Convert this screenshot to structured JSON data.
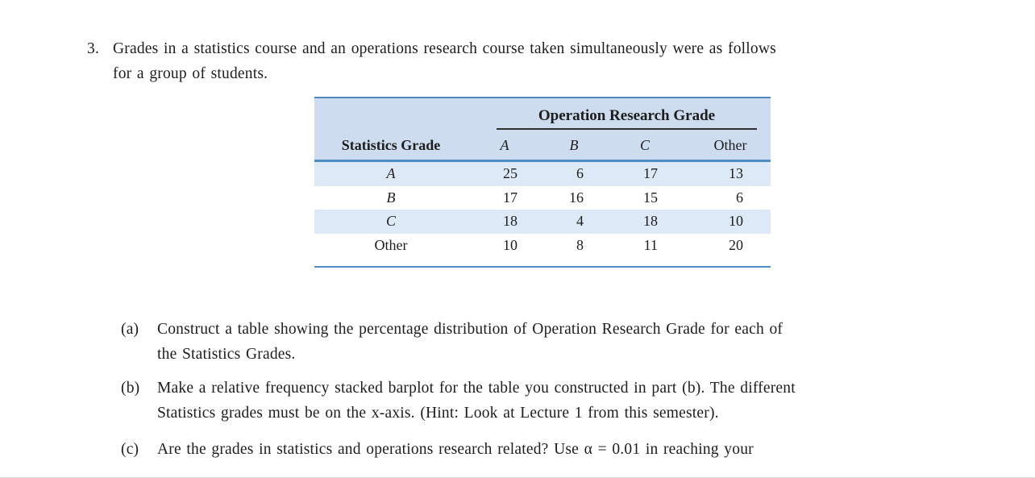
{
  "page": {
    "background": "#ffffff"
  },
  "problem": {
    "number": "3.",
    "lines": [
      "Grades in a statistics course and an operations research course taken simultaneously were as follows",
      "for a group of students."
    ]
  },
  "table": {
    "span_header": "Operation Research Grade",
    "row_header": "Statistics Grade",
    "columns": [
      "A",
      "B",
      "C",
      "Other"
    ],
    "rows": [
      {
        "label": "A",
        "values": [
          "25",
          "6",
          "17",
          "13"
        ]
      },
      {
        "label": "B",
        "values": [
          "17",
          "16",
          "15",
          "6"
        ]
      },
      {
        "label": "C",
        "values": [
          "18",
          "4",
          "18",
          "10"
        ]
      },
      {
        "label": "Other",
        "values": [
          "10",
          "8",
          "11",
          "20"
        ]
      }
    ],
    "colors": {
      "header_bg": "#cddcef",
      "stripe_bg": "#dde9f6",
      "rule_blue": "#4e8ec6",
      "span_rule_dark": "#2e2e2e"
    }
  },
  "questions": [
    {
      "label": "(a)",
      "lines": [
        "Construct a table showing the percentage distribution of Operation Research Grade for each of",
        "the Statistics Grades."
      ]
    },
    {
      "label": "(b)",
      "lines": [
        "Make a relative frequency stacked barplot for the table you constructed in part (b). The different",
        "Statistics grades must be on the x-axis. (Hint: Look at Lecture 1 from this semester)."
      ]
    },
    {
      "label": "(c)",
      "lines": [
        "Are the grades in statistics and operations research related? Use α = 0.01 in reaching your"
      ]
    }
  ]
}
